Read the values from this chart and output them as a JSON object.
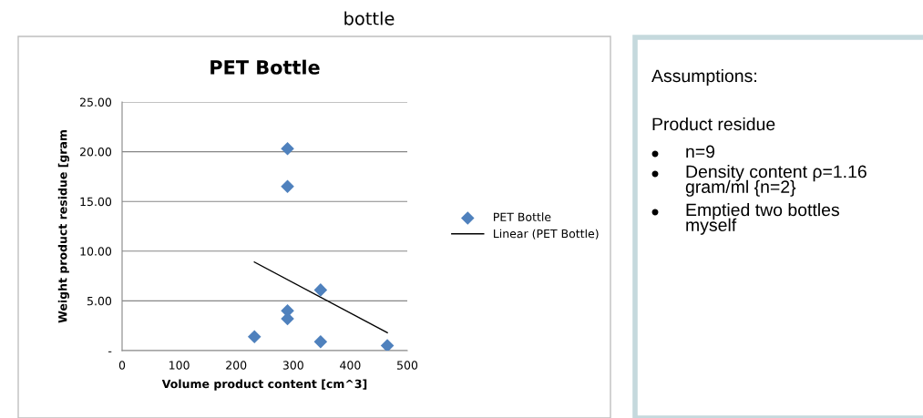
{
  "chart_data": [
    {
      "type": "scatter",
      "title": "PET Bottle",
      "xlabel": "Volume product content [cm^3]",
      "ylabel": "Weight product residue [gram",
      "annotations": [
        "bottle"
      ],
      "series": [
        {
          "name": "PET Bottle",
          "type": "scatter",
          "color": "#4f81bd",
          "marker": "diamond",
          "x": [
            290,
            290,
            348,
            290,
            290,
            232,
            348,
            465
          ],
          "values": [
            20.3,
            16.5,
            6.1,
            4.0,
            3.2,
            1.4,
            0.9,
            0.5
          ]
        },
        {
          "name": "Linear (PET Bottle)",
          "type": "line",
          "color": "#000000",
          "marker": "none",
          "x": [
            232,
            465
          ],
          "values": [
            8.9,
            1.8
          ]
        }
      ],
      "xlim": [
        0,
        500
      ],
      "xticks": [
        0,
        100,
        200,
        300,
        400,
        500
      ],
      "ylim": [
        0,
        25
      ],
      "yticks": [
        {
          "value": 0,
          "label": "-"
        },
        {
          "value": 5,
          "label": "5.00"
        },
        {
          "value": 10,
          "label": "10.00"
        },
        {
          "value": 15,
          "label": "15.00"
        },
        {
          "value": 20,
          "label": "20.00"
        },
        {
          "value": 25,
          "label": "25.00"
        }
      ],
      "grid": "y",
      "legend": "right"
    },
    {
      "type": "other",
      "title": "Assumptions:",
      "subtitle": "Product residue",
      "annotations": [
        "n=9",
        "Density content ρ=1.16\ngram/ml {n=2}",
        "Emptied two bottles\nmyself"
      ]
    }
  ]
}
